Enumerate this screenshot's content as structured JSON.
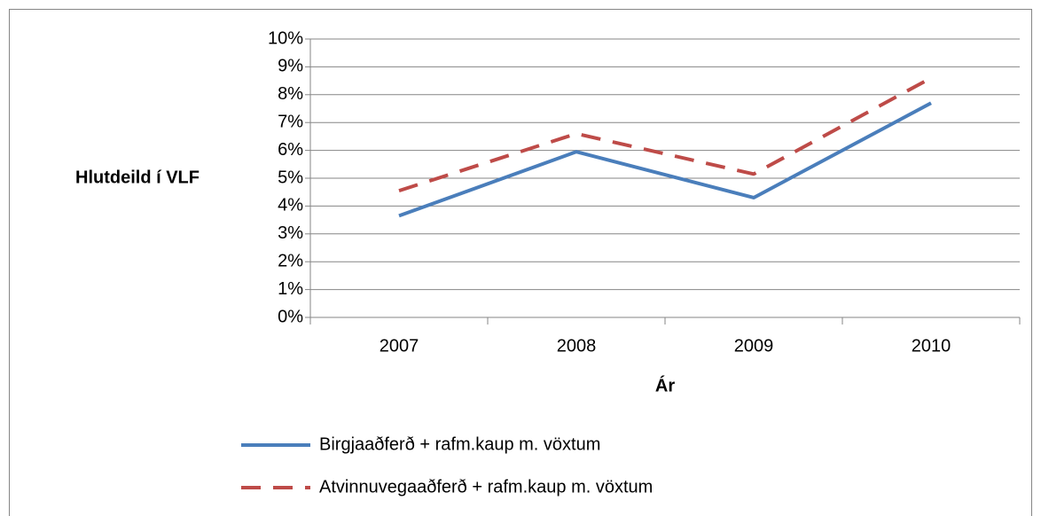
{
  "chart_data": {
    "type": "line",
    "y_label": "Hlutdeild í VLF",
    "x_label": "Ár",
    "categories": [
      "2007",
      "2008",
      "2009",
      "2010"
    ],
    "series": [
      {
        "name": "Birgjaaðferð + rafm.kaup m. vöxtum",
        "color": "#4a7ebb",
        "dashed": false,
        "values": [
          3.65,
          5.95,
          4.3,
          7.7
        ]
      },
      {
        "name": "Atvinnuvegaaðferð + rafm.kaup m. vöxtum",
        "color": "#be4b48",
        "dashed": true,
        "values": [
          4.55,
          6.6,
          5.15,
          8.6
        ]
      }
    ],
    "ylim": [
      0,
      10
    ],
    "yticks": [
      {
        "value": 0,
        "label": "0%"
      },
      {
        "value": 1,
        "label": "1%"
      },
      {
        "value": 2,
        "label": "2%"
      },
      {
        "value": 3,
        "label": "3%"
      },
      {
        "value": 4,
        "label": "4%"
      },
      {
        "value": 5,
        "label": "5%"
      },
      {
        "value": 6,
        "label": "6%"
      },
      {
        "value": 7,
        "label": "7%"
      },
      {
        "value": 8,
        "label": "8%"
      },
      {
        "value": 9,
        "label": "9%"
      },
      {
        "value": 10,
        "label": "10%"
      }
    ],
    "grid": true
  }
}
